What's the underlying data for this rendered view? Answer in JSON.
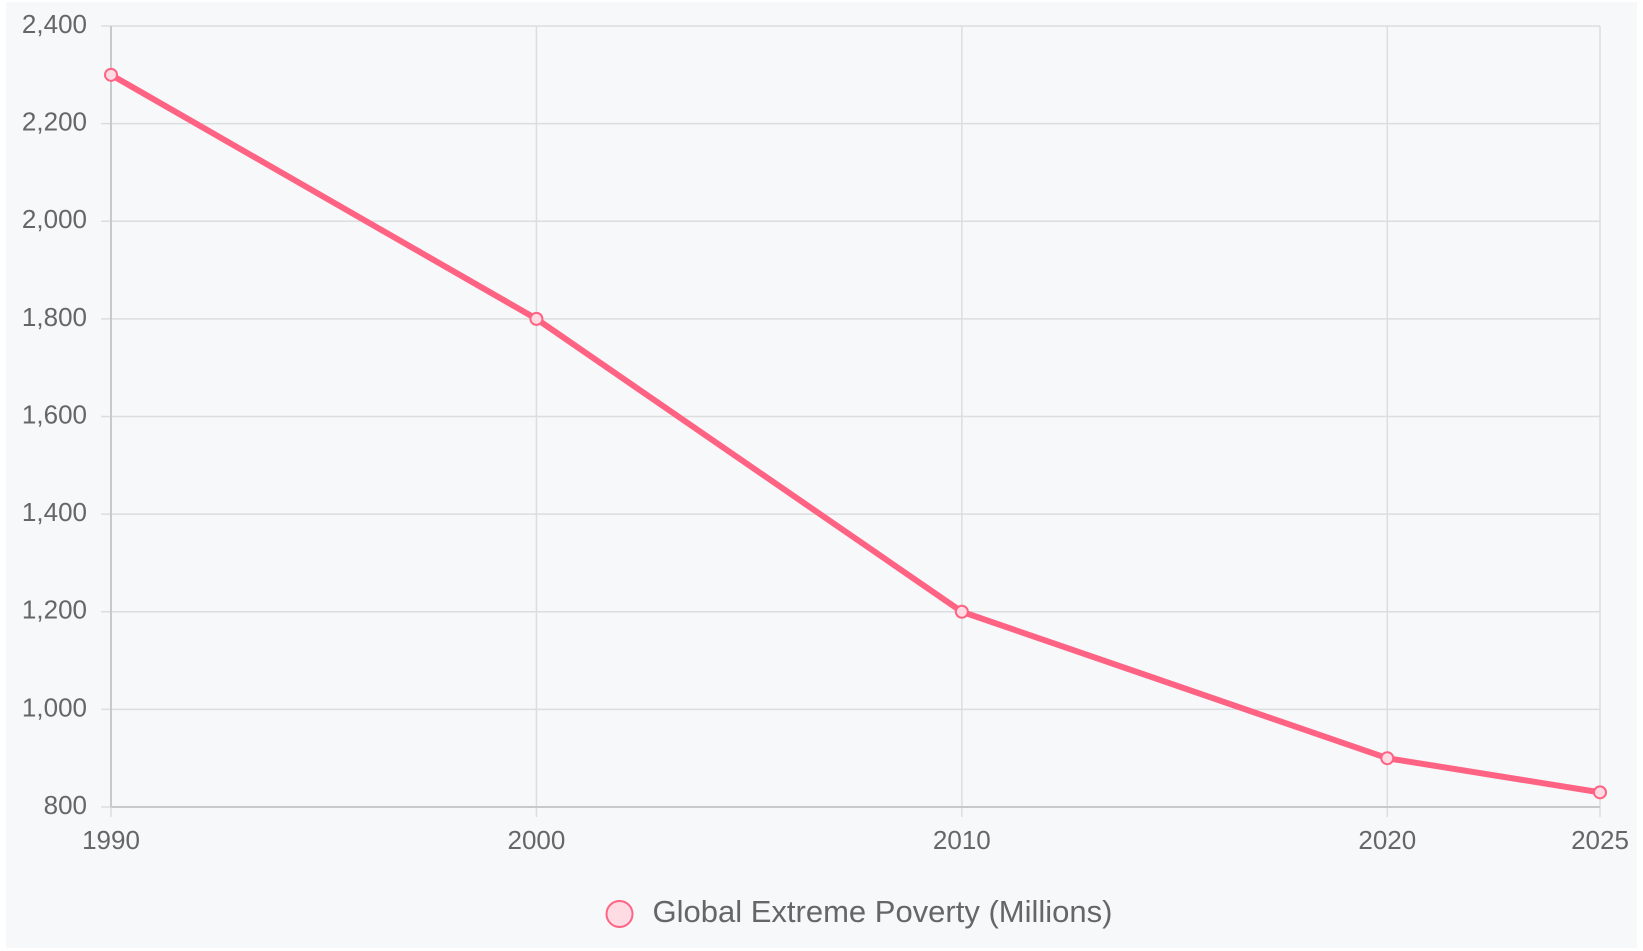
{
  "chart_data": {
    "type": "line",
    "title": "",
    "xlabel": "",
    "ylabel": "",
    "x": [
      1990,
      2000,
      2010,
      2020,
      2025
    ],
    "xlim": [
      1990,
      2025
    ],
    "ylim": [
      800,
      2400
    ],
    "y_ticks": [
      "800",
      "1,000",
      "1,200",
      "1,400",
      "1,600",
      "1,800",
      "2,000",
      "2,200",
      "2,400"
    ],
    "x_ticks": [
      "1990",
      "2000",
      "2010",
      "2020",
      "2025"
    ],
    "grid": true,
    "legend_position": "bottom",
    "series": [
      {
        "name": "Global Extreme Poverty (Millions)",
        "values": [
          2300,
          1800,
          1200,
          900,
          830
        ],
        "color": "#ff6384",
        "fill": "#ffdbe3"
      }
    ]
  }
}
